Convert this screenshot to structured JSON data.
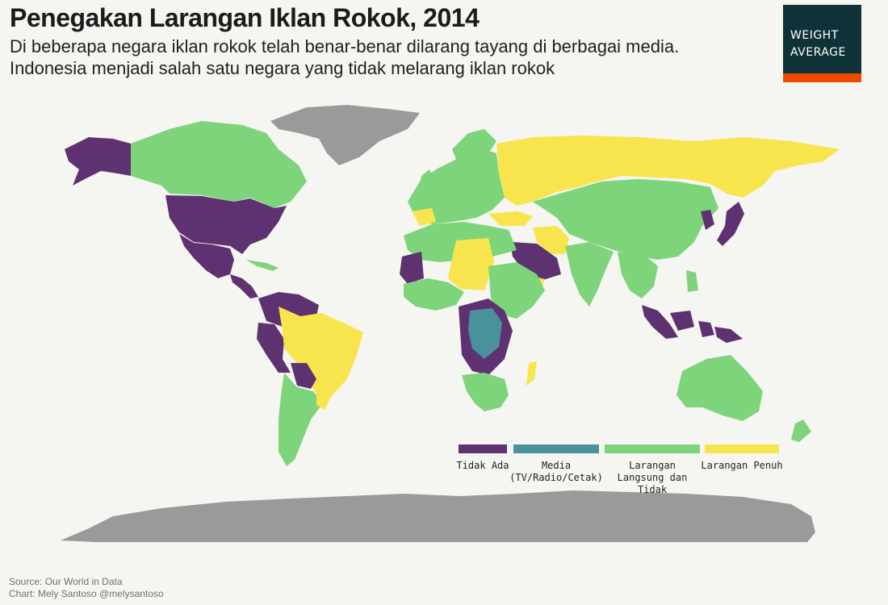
{
  "header": {
    "title": "Penegakan Larangan Iklan Rokok, 2014",
    "subtitle_line1": "Di beberapa negara iklan rokok telah benar-benar dilarang tayang di berbagai media.",
    "subtitle_line2": "Indonesia menjadi salah satu negara yang tidak melarang iklan rokok"
  },
  "logo": {
    "line1": "WEIGHT",
    "line2": "AVERAGE",
    "bg_color": "#0f3238",
    "accent_color": "#f04a00"
  },
  "legend": [
    {
      "label_line1": "Tidak Ada",
      "label_line2": "",
      "color": "#5e3271"
    },
    {
      "label_line1": "Media",
      "label_line2": "(TV/Radio/Cetak)",
      "color": "#4a929b"
    },
    {
      "label_line1": "Larangan",
      "label_line2": "Langsung dan Tidak",
      "color": "#7ed47a"
    },
    {
      "label_line1": "Larangan Penuh",
      "label_line2": "",
      "color": "#f8e54d"
    }
  ],
  "map_colors": {
    "no_data": "#9a9a9a",
    "background": "#f5f5f1"
  },
  "footer": {
    "source": "Source: Our World in Data",
    "credit": "Chart: Mely Santoso @melysantoso"
  }
}
